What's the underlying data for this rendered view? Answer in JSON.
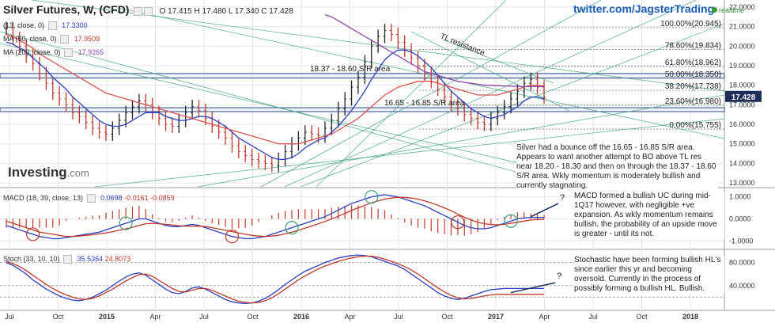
{
  "header": {
    "title": "Silver Futures, W, (CFD)",
    "ohlc": "O 17.415 H 17.480 L 17.340 C 17.428",
    "ind1_label": "(13, close, 0)",
    "ind1_value": "17.3300",
    "ind2_label": "MA (50, close, 0)",
    "ind2_value": "17.9509",
    "ind3_label": "MA (200, close, 0)",
    "ind3_value": "17.9265"
  },
  "twitter": "twitter.com/JagsterTrading",
  "realtime": "realtime",
  "logo": {
    "main": "Investing",
    "suffix": ".com"
  },
  "price_label": "17.428",
  "zone_labels": {
    "upper": "18.37 - 18.60 S/R area",
    "lower": "16.65 - 16.85 S/R area",
    "tl": "TL resistance"
  },
  "fib_levels": [
    {
      "label": "100.00%(20.945)",
      "value": 20.945
    },
    {
      "label": "78.60%(19.834)",
      "value": 19.834
    },
    {
      "label": "61.80%(18.962)",
      "value": 18.962
    },
    {
      "label": "50.00%(18.350)",
      "value": 18.35
    },
    {
      "label": "38.20%(17.738)",
      "value": 17.738
    },
    {
      "label": "23.60%(16.980)",
      "value": 16.98
    },
    {
      "label": "0.00%(15.755)",
      "value": 15.755
    }
  ],
  "notes": {
    "price": "Silver had a bounce off the 16.65 - 16.85 S/R area. Appears to want another attempt to BO above TL res near 18.20 - 18.30 and then on through the 18.37 - 18.60 S/R area. Wkly momentum is moderately bullish and currently stagnating.",
    "macd": "MACD formed a bullish UC during mid-1Q17 however, with negligible +ve expansion. As wkly momentum remains bullish, the probability of an upside move is greater - until its not.",
    "stoch": "Stochastic have been forming bullish HL's since earlier this yr and becoming oversold. Currently in the process of possibly forming a bullish HL. Bullish."
  },
  "macd_header": {
    "label": "MACD (18, 39, close, 13)",
    "v1": "0.0698",
    "v2": "-0.0161",
    "v3": "-0.0859"
  },
  "stoch_header": {
    "label": "Stoch (33, 10, 10)",
    "v1": "35.5364",
    "v2": "24.8073"
  },
  "question_mark": "?",
  "colors": {
    "price_up": "#222222",
    "price_down": "#c0392b",
    "ma_blue": "#2a3fc0",
    "ma_red": "#d9534f",
    "ma_purple": "#8e44ad",
    "trend_green": "#3aa07a",
    "zone": "#2c4a8a"
  },
  "chart_data": [
    {
      "type": "line",
      "name": "price",
      "x_ticks": [
        "Jul",
        "Oct",
        "2015",
        "Apr",
        "Jul",
        "Oct",
        "2016",
        "Apr",
        "Jul",
        "Oct",
        "2017",
        "Apr",
        "Jul",
        "Oct",
        "2018"
      ],
      "y_ticks": [
        "22.0000",
        "21.0000",
        "20.0000",
        "19.0000",
        "18.0000",
        "17.0000",
        "16.0000",
        "15.0000",
        "14.0000",
        "13.0000"
      ],
      "ylim": [
        12.8,
        22.2
      ],
      "series": [
        {
          "key": "price",
          "values": [
            20.9,
            20.4,
            20.0,
            19.5,
            19.1,
            18.6,
            18.1,
            17.6,
            17.3,
            17.0,
            16.6,
            16.4,
            16.1,
            15.8,
            15.6,
            15.5,
            15.8,
            16.2,
            16.6,
            16.9,
            17.2,
            17.0,
            16.6,
            16.3,
            16.0,
            15.9,
            16.2,
            16.6,
            16.9,
            16.7,
            16.3,
            15.9,
            15.6,
            15.3,
            14.9,
            14.6,
            14.4,
            14.2,
            14.1,
            14.0,
            13.9,
            14.2,
            14.6,
            15.0,
            15.3,
            15.6,
            15.5,
            15.4,
            15.8,
            16.2,
            16.8,
            17.3,
            17.9,
            18.4,
            19.2,
            20.0,
            20.5,
            20.8,
            20.6,
            20.2,
            19.8,
            19.4,
            19.0,
            18.6,
            18.2,
            17.8,
            17.4,
            17.0,
            16.8,
            16.5,
            16.3,
            16.1,
            16.0,
            16.3,
            16.6,
            16.9,
            17.3,
            17.7,
            18.1,
            18.3,
            17.9,
            17.4
          ]
        },
        {
          "key": "ma13",
          "values": [
            20.2,
            20.1,
            19.9,
            19.7,
            19.4,
            19.1,
            18.8,
            18.4,
            18.1,
            17.8,
            17.4,
            17.1,
            16.8,
            16.5,
            16.2,
            16.0,
            15.9,
            15.9,
            16.0,
            16.2,
            16.4,
            16.6,
            16.6,
            16.6,
            16.4,
            16.3,
            16.2,
            16.2,
            16.3,
            16.4,
            16.4,
            16.3,
            16.1,
            15.9,
            15.6,
            15.3,
            15.1,
            14.9,
            14.7,
            14.5,
            14.3,
            14.2,
            14.2,
            14.3,
            14.5,
            14.8,
            15.0,
            15.2,
            15.3,
            15.6,
            15.9,
            16.3,
            16.7,
            17.2,
            17.7,
            18.3,
            18.8,
            19.3,
            19.6,
            19.8,
            19.8,
            19.7,
            19.5,
            19.2,
            18.9,
            18.5,
            18.1,
            17.7,
            17.4,
            17.1,
            16.8,
            16.6,
            16.4,
            16.3,
            16.4,
            16.5,
            16.7,
            16.9,
            17.2,
            17.4,
            17.4,
            17.3
          ]
        },
        {
          "key": "ma50",
          "values": [
            20.6,
            20.5,
            20.3,
            20.1,
            19.9,
            19.6,
            19.4,
            19.2,
            19.0,
            18.8,
            18.6,
            18.4,
            18.2,
            18.0,
            17.8,
            17.6,
            17.5,
            17.4,
            17.3,
            17.2,
            17.1,
            17.0,
            16.9,
            16.8,
            16.7,
            16.6,
            16.5,
            16.4,
            16.3,
            16.2,
            16.1,
            16.0,
            15.9,
            15.8,
            15.7,
            15.6,
            15.5,
            15.4,
            15.3,
            15.2,
            15.1,
            15.0,
            15.0,
            15.0,
            15.0,
            15.1,
            15.2,
            15.3,
            15.4,
            15.5,
            15.7,
            15.9,
            16.1,
            16.3,
            16.6,
            16.9,
            17.2,
            17.5,
            17.7,
            17.9,
            18.0,
            18.1,
            18.2,
            18.2,
            18.2,
            18.1,
            18.0,
            17.9,
            17.8,
            17.7,
            17.6,
            17.5,
            17.5,
            17.5,
            17.5,
            17.6,
            17.7,
            17.8,
            17.9,
            18.0,
            18.0,
            17.95
          ]
        },
        {
          "key": "ma200",
          "values": [
            null,
            null,
            null,
            null,
            null,
            null,
            null,
            null,
            null,
            null,
            null,
            null,
            null,
            null,
            null,
            null,
            null,
            null,
            null,
            null,
            null,
            null,
            null,
            null,
            null,
            null,
            null,
            null,
            null,
            null,
            null,
            null,
            null,
            null,
            null,
            null,
            null,
            null,
            null,
            null,
            null,
            null,
            null,
            null,
            null,
            null,
            null,
            null,
            21.6,
            21.5,
            21.3,
            21.1,
            20.9,
            20.7,
            20.5,
            20.3,
            20.1,
            19.9,
            19.7,
            19.5,
            19.3,
            19.1,
            18.9,
            18.7,
            18.6,
            18.5,
            18.4,
            18.3,
            18.2,
            18.15,
            18.1,
            18.05,
            18.0,
            18.0,
            17.98,
            17.96,
            17.95,
            17.94,
            17.93,
            17.93,
            17.93,
            17.93
          ]
        }
      ]
    },
    {
      "type": "line",
      "name": "macd",
      "y_ticks": [
        "1.0000",
        "0.0000",
        "-1.0000"
      ],
      "ylim": [
        -1.35,
        1.35
      ],
      "series": [
        {
          "key": "macd",
          "values": [
            -0.3,
            -0.4,
            -0.5,
            -0.6,
            -0.7,
            -0.8,
            -0.85,
            -0.9,
            -0.9,
            -0.85,
            -0.8,
            -0.75,
            -0.7,
            -0.65,
            -0.6,
            -0.5,
            -0.4,
            -0.3,
            -0.2,
            -0.1,
            0.0,
            0.0,
            -0.1,
            -0.2,
            -0.3,
            -0.35,
            -0.35,
            -0.3,
            -0.25,
            -0.3,
            -0.4,
            -0.5,
            -0.6,
            -0.7,
            -0.8,
            -0.85,
            -0.9,
            -0.9,
            -0.85,
            -0.8,
            -0.7,
            -0.6,
            -0.5,
            -0.4,
            -0.3,
            -0.2,
            -0.1,
            0.0,
            0.1,
            0.25,
            0.4,
            0.55,
            0.7,
            0.8,
            0.9,
            1.0,
            1.05,
            1.1,
            1.05,
            1.0,
            0.9,
            0.8,
            0.7,
            0.6,
            0.45,
            0.3,
            0.15,
            0.0,
            -0.15,
            -0.3,
            -0.4,
            -0.45,
            -0.45,
            -0.4,
            -0.3,
            -0.2,
            -0.1,
            0.0,
            0.05,
            0.07,
            0.07,
            0.07
          ]
        },
        {
          "key": "signal",
          "values": [
            -0.1,
            -0.2,
            -0.3,
            -0.4,
            -0.5,
            -0.6,
            -0.65,
            -0.7,
            -0.75,
            -0.8,
            -0.8,
            -0.78,
            -0.75,
            -0.72,
            -0.68,
            -0.64,
            -0.58,
            -0.52,
            -0.45,
            -0.38,
            -0.3,
            -0.22,
            -0.2,
            -0.22,
            -0.25,
            -0.28,
            -0.31,
            -0.33,
            -0.33,
            -0.33,
            -0.35,
            -0.4,
            -0.46,
            -0.52,
            -0.58,
            -0.64,
            -0.7,
            -0.75,
            -0.78,
            -0.8,
            -0.78,
            -0.74,
            -0.68,
            -0.6,
            -0.52,
            -0.42,
            -0.32,
            -0.22,
            -0.12,
            0.0,
            0.12,
            0.25,
            0.38,
            0.5,
            0.62,
            0.73,
            0.82,
            0.9,
            0.95,
            0.98,
            0.98,
            0.95,
            0.9,
            0.82,
            0.73,
            0.62,
            0.5,
            0.37,
            0.22,
            0.08,
            -0.05,
            -0.15,
            -0.22,
            -0.26,
            -0.27,
            -0.25,
            -0.2,
            -0.15,
            -0.1,
            -0.05,
            -0.03,
            -0.02
          ]
        }
      ]
    },
    {
      "type": "line",
      "name": "stoch",
      "y_ticks": [
        "80.0000",
        "40.0000"
      ],
      "ylim": [
        0,
        100
      ],
      "series": [
        {
          "key": "k",
          "values": [
            80,
            75,
            68,
            60,
            50,
            42,
            34,
            28,
            22,
            18,
            15,
            14,
            16,
            20,
            26,
            32,
            40,
            48,
            55,
            60,
            62,
            58,
            50,
            42,
            34,
            28,
            26,
            30,
            36,
            38,
            34,
            28,
            22,
            16,
            12,
            10,
            9,
            10,
            13,
            18,
            25,
            33,
            42,
            50,
            58,
            65,
            70,
            75,
            80,
            84,
            88,
            90,
            92,
            93,
            92,
            90,
            86,
            82,
            78,
            74,
            68,
            60,
            52,
            44,
            36,
            28,
            22,
            18,
            16,
            18,
            22,
            26,
            30,
            33,
            34,
            35,
            35,
            35,
            35,
            35,
            35,
            35
          ]
        },
        {
          "key": "d",
          "values": [
            82,
            78,
            73,
            66,
            58,
            50,
            42,
            35,
            29,
            24,
            20,
            17,
            16,
            18,
            22,
            28,
            34,
            41,
            48,
            54,
            59,
            60,
            56,
            49,
            42,
            35,
            30,
            29,
            32,
            35,
            35,
            32,
            27,
            22,
            17,
            13,
            11,
            10,
            11,
            14,
            19,
            26,
            34,
            42,
            50,
            57,
            63,
            69,
            74,
            78,
            82,
            85,
            88,
            90,
            91,
            91,
            89,
            86,
            82,
            78,
            73,
            67,
            60,
            52,
            44,
            36,
            29,
            23,
            19,
            17,
            18,
            20,
            22,
            24,
            25,
            25,
            25,
            25,
            25,
            25,
            25,
            25
          ]
        }
      ]
    }
  ]
}
